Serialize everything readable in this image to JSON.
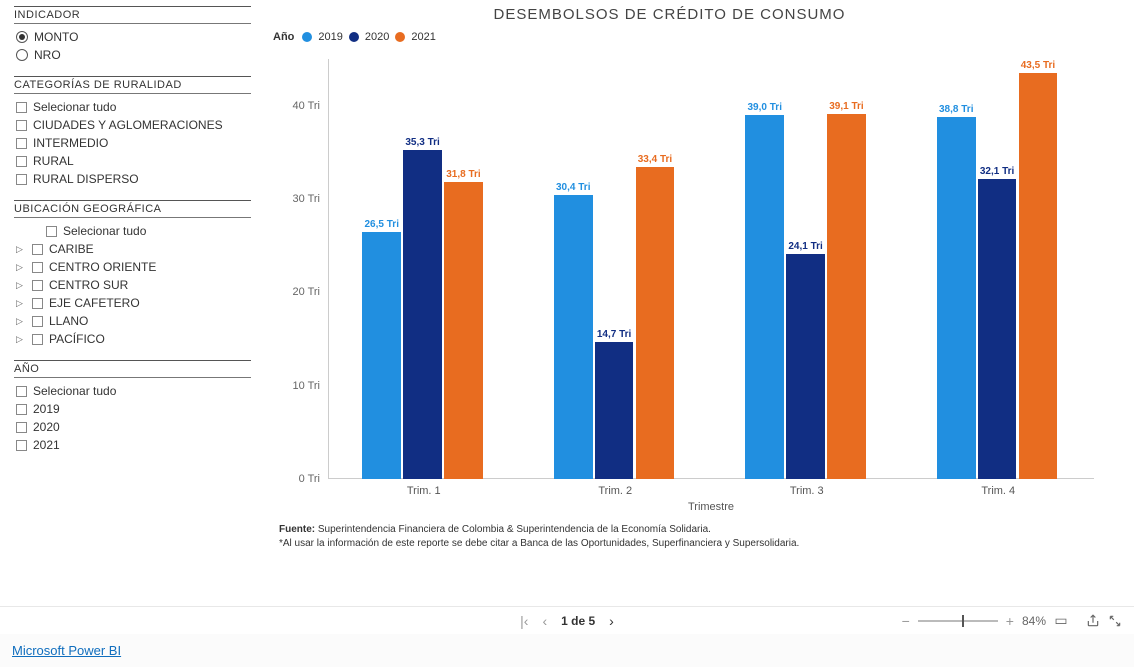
{
  "sidebar": {
    "indicador": {
      "title": "INDICADOR",
      "options": [
        {
          "label": "MONTO",
          "selected": true
        },
        {
          "label": "NRO",
          "selected": false
        }
      ]
    },
    "ruralidad": {
      "title": "CATEGORÍAS DE RURALIDAD",
      "options": [
        {
          "label": "Selecionar tudo"
        },
        {
          "label": "CIUDADES Y AGLOMERACIONES"
        },
        {
          "label": "INTERMEDIO"
        },
        {
          "label": "RURAL"
        },
        {
          "label": "RURAL DISPERSO"
        }
      ]
    },
    "ubicacion": {
      "title": "UBICACIÓN GEOGRÁFICA",
      "options": [
        {
          "label": "Selecionar tudo",
          "expandable": false,
          "indent": true
        },
        {
          "label": "CARIBE",
          "expandable": true
        },
        {
          "label": "CENTRO ORIENTE",
          "expandable": true
        },
        {
          "label": "CENTRO SUR",
          "expandable": true
        },
        {
          "label": "EJE CAFETERO",
          "expandable": true
        },
        {
          "label": "LLANO",
          "expandable": true
        },
        {
          "label": "PACÍFICO",
          "expandable": true
        }
      ]
    },
    "anio": {
      "title": "AÑO",
      "options": [
        {
          "label": "Selecionar tudo"
        },
        {
          "label": "2019"
        },
        {
          "label": "2020"
        },
        {
          "label": "2021"
        }
      ]
    }
  },
  "chart": {
    "title": "DESEMBOLSOS DE CRÉDITO DE CONSUMO",
    "type": "bar",
    "legend_label": "Año",
    "series": [
      {
        "name": "2019",
        "color": "#218fe0"
      },
      {
        "name": "2020",
        "color": "#112e83"
      },
      {
        "name": "2021",
        "color": "#e86c20"
      }
    ],
    "categories": [
      "Trim. 1",
      "Trim. 2",
      "Trim. 3",
      "Trim. 4"
    ],
    "xlabel": "Trimestre",
    "y_title_suffix": " Tri",
    "ylim": [
      0,
      45
    ],
    "ytick_step": 10,
    "background_color": "#ffffff",
    "axis_color": "#cccccc",
    "bar_label_suffix": " Tri",
    "groups": [
      {
        "values": [
          26.5,
          35.3,
          31.8
        ],
        "labels": [
          "26,5 Tri",
          "35,3 Tri",
          "31,8 Tri"
        ]
      },
      {
        "values": [
          30.4,
          14.7,
          33.4
        ],
        "labels": [
          "30,4 Tri",
          "14,7 Tri",
          "33,4 Tri"
        ]
      },
      {
        "values": [
          39.0,
          24.1,
          39.1
        ],
        "labels": [
          "39,0 Tri",
          "24,1 Tri",
          "39,1 Tri"
        ]
      },
      {
        "values": [
          38.8,
          32.1,
          43.5
        ],
        "labels": [
          "38,8 Tri",
          "32,1 Tri",
          "43,5 Tri"
        ]
      }
    ]
  },
  "footer": {
    "source_label": "Fuente:",
    "source_text": " Superintendencia Financiera de Colombia & Superintendencia de la Economía Solidaria.",
    "note": "*Al usar la información de este reporte se debe citar a Banca de las Oportunidades, Superfinanciera y Supersolidaria."
  },
  "toolbar": {
    "page_indicator": "1 de 5",
    "zoom_pct": "84%",
    "brand": "Microsoft Power BI",
    "slider_pos_pct": 55
  }
}
